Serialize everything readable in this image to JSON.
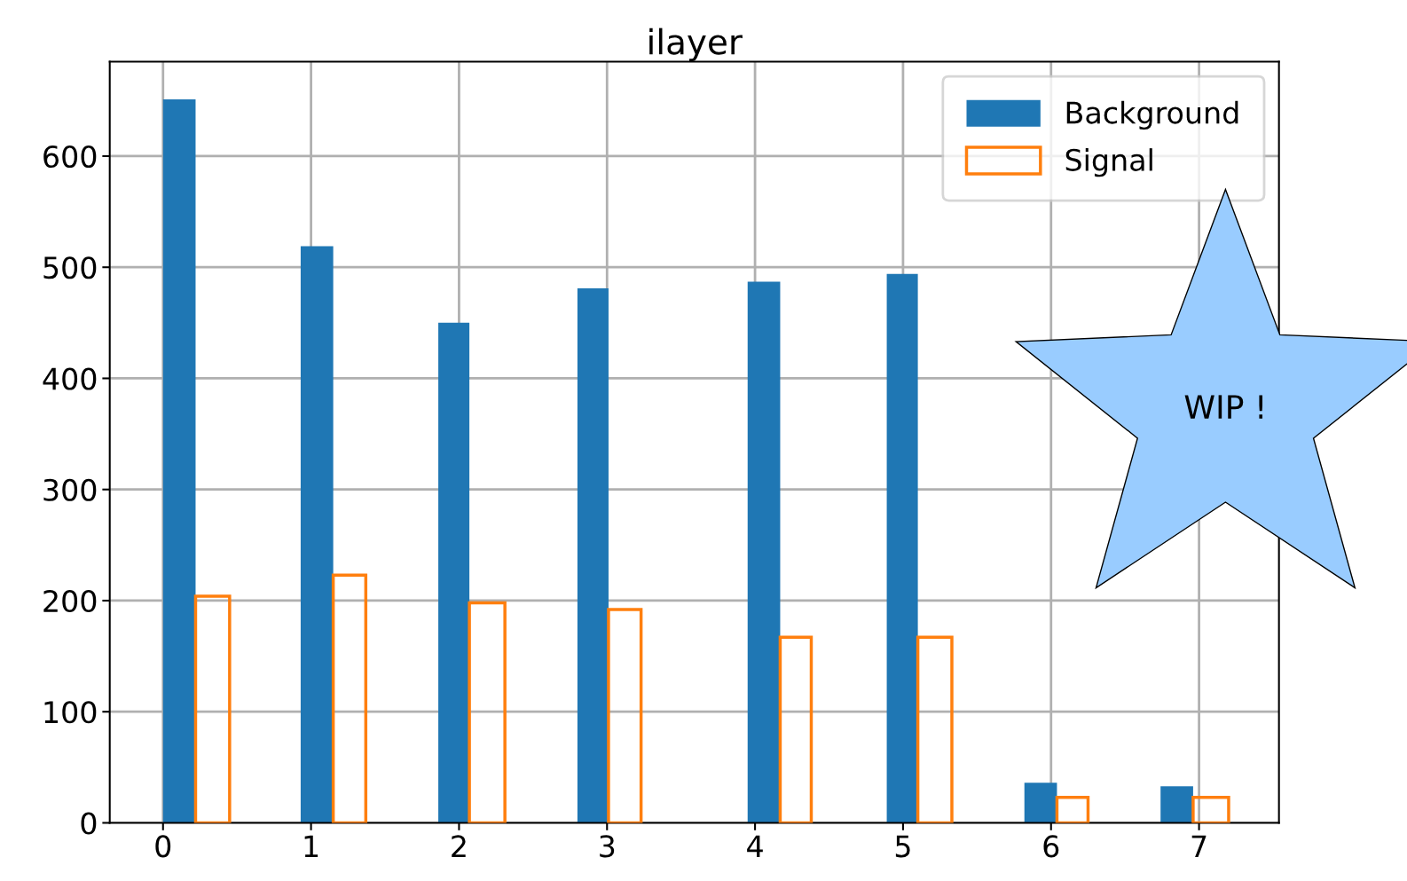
{
  "chart_data": {
    "type": "histogram",
    "title": "ilayer",
    "bins": [
      0.0,
      0.22,
      0.45,
      0.93,
      1.15,
      1.37,
      1.86,
      2.07,
      2.31,
      2.8,
      3.01,
      3.23,
      3.95,
      4.17,
      4.38,
      4.89,
      5.1,
      5.33,
      5.82,
      6.04,
      6.25,
      6.74,
      6.96,
      7.2
    ],
    "series": [
      {
        "name": "Background",
        "color": "#1f77b4",
        "values": [
          651,
          null,
          null,
          519,
          null,
          null,
          450,
          null,
          null,
          481,
          null,
          null,
          487,
          null,
          null,
          494,
          null,
          null,
          36,
          null,
          null,
          33,
          null
        ]
      },
      {
        "name": "Signal",
        "color": "#ff7f0e",
        "values": [
          null,
          204,
          null,
          null,
          223,
          null,
          null,
          198,
          null,
          null,
          192,
          null,
          null,
          167,
          null,
          null,
          167,
          null,
          null,
          23,
          null,
          null,
          23
        ]
      }
    ],
    "xlim": [
      -0.36,
      7.54
    ],
    "xticks": [
      0,
      1,
      2,
      3,
      4,
      5,
      6,
      7
    ],
    "ylim": [
      0,
      685
    ],
    "yticks": [
      0,
      100,
      200,
      300,
      400,
      500,
      600
    ],
    "grid": true,
    "legend": "top right",
    "annotations": [
      "WIP !"
    ]
  }
}
